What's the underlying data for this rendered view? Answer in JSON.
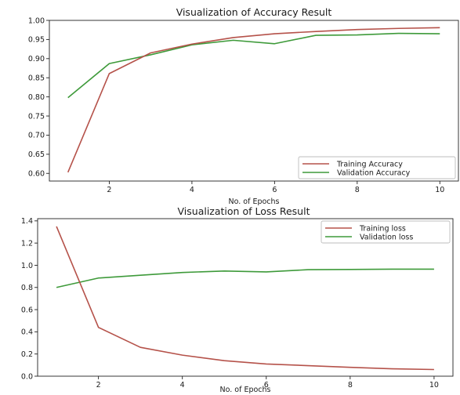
{
  "colors": {
    "training": "#b5524a",
    "validation": "#3e9a3a"
  },
  "chart_data": [
    {
      "type": "line",
      "title": "Visualization of Accuracy Result",
      "xlabel": "No. of Epochs",
      "ylabel": "",
      "xlim": [
        0.55,
        10.45
      ],
      "ylim": [
        0.58,
        1.0
      ],
      "xticks": [
        2,
        4,
        6,
        8,
        10
      ],
      "xtick_labels": [
        "2",
        "4",
        "6",
        "8",
        "10"
      ],
      "yticks": [
        0.6,
        0.65,
        0.7,
        0.75,
        0.8,
        0.85,
        0.9,
        0.95,
        1.0
      ],
      "ytick_labels": [
        "0.60",
        "0.65",
        "0.70",
        "0.75",
        "0.80",
        "0.85",
        "0.90",
        "0.95",
        "1.00"
      ],
      "legend": "lower-right",
      "grid": false,
      "x": [
        1,
        2,
        3,
        4,
        5,
        6,
        7,
        8,
        9,
        10
      ],
      "series": [
        {
          "name": "Training Accuracy",
          "color_key": "training",
          "values": [
            0.603,
            0.861,
            0.915,
            0.938,
            0.955,
            0.965,
            0.971,
            0.976,
            0.979,
            0.981
          ]
        },
        {
          "name": "Validation Accuracy",
          "color_key": "validation",
          "values": [
            0.798,
            0.887,
            0.91,
            0.936,
            0.948,
            0.939,
            0.961,
            0.962,
            0.966,
            0.965
          ]
        }
      ]
    },
    {
      "type": "line",
      "title": "Visualization of Loss Result",
      "xlabel": "No. of Epochs",
      "ylabel": "",
      "xlim": [
        0.55,
        10.45
      ],
      "ylim": [
        0.0,
        1.42
      ],
      "xticks": [
        2,
        4,
        6,
        8,
        10
      ],
      "xtick_labels": [
        "2",
        "4",
        "6",
        "8",
        "10"
      ],
      "yticks": [
        0.0,
        0.2,
        0.4,
        0.6,
        0.8,
        1.0,
        1.2,
        1.4
      ],
      "ytick_labels": [
        "0.0",
        "0.2",
        "0.4",
        "0.6",
        "0.8",
        "1.0",
        "1.2",
        "1.4"
      ],
      "legend": "upper-right",
      "grid": false,
      "x": [
        1,
        2,
        3,
        4,
        5,
        6,
        7,
        8,
        9,
        10
      ],
      "series": [
        {
          "name": "Training loss",
          "color_key": "training",
          "values": [
            1.35,
            0.44,
            0.26,
            0.19,
            0.14,
            0.11,
            0.095,
            0.08,
            0.067,
            0.06
          ]
        },
        {
          "name": "Validation loss",
          "color_key": "validation",
          "values": [
            0.8,
            0.885,
            0.91,
            0.935,
            0.948,
            0.94,
            0.96,
            0.962,
            0.965,
            0.965
          ]
        }
      ]
    }
  ]
}
